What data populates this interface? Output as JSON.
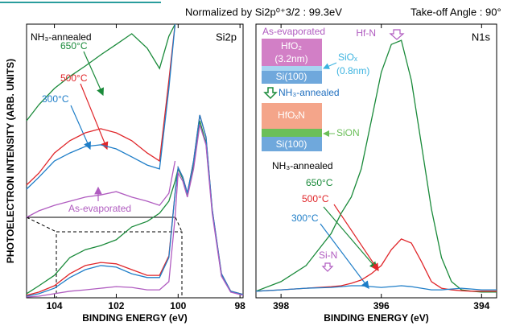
{
  "header": {
    "normalization": "Normalized by Si2p⁰⁺3/2 : 99.3eV",
    "angle": "Take-off Angle : 90°"
  },
  "y_label": "PHOTOELECTRON INTENSITY (ARB. UNITS)",
  "chart_data": [
    {
      "type": "line",
      "title": "Si2p",
      "xlabel": "BINDING ENERGY (eV)",
      "xlim": [
        104.9,
        97.9
      ],
      "xticks": [
        104,
        102,
        100,
        98
      ],
      "ylim": [
        0,
        100
      ],
      "x": [
        104.9,
        104.5,
        104,
        103.5,
        103,
        102.5,
        102,
        101.5,
        101,
        100.6,
        100.3,
        100.1,
        100,
        99.85,
        99.7,
        99.5,
        99.3,
        99.1,
        98.9,
        98.6,
        98.3,
        97.9
      ],
      "series": [
        {
          "color": "#1a8a3a",
          "values": [
            1.5,
            4.4,
            8.2,
            14.7,
            17.6,
            19.1,
            21.2,
            25.9,
            27.9,
            30.9,
            35.3,
            42.6,
            47.1,
            43.5,
            38.2,
            48.5,
            64.7,
            56.5,
            31.8,
            8.2,
            2.4,
            1.2
          ]
        },
        {
          "color": "#e0262a",
          "values": [
            0.9,
            2.1,
            4.4,
            8.8,
            11.8,
            12.9,
            12.4,
            10.3,
            8.2,
            8.2,
            15.3,
            38.2,
            47.6,
            44.1,
            38.2,
            50,
            66.8,
            58.8,
            32.4,
            8.8,
            2.4,
            1.2
          ]
        },
        {
          "color": "#1f7ec8",
          "values": [
            0.6,
            1.5,
            3.5,
            7.4,
            10.3,
            11.8,
            11.2,
            8.8,
            7.4,
            7.4,
            14.7,
            38.2,
            47.6,
            44.1,
            38.2,
            50,
            66.8,
            58.8,
            32.4,
            8.8,
            2.4,
            1.2
          ]
        },
        {
          "color": "#b05cc0",
          "values": [
            0.3,
            0.6,
            1.5,
            2.4,
            2.9,
            3.5,
            4.1,
            3.8,
            2.9,
            2.9,
            5.9,
            29.4,
            45.6,
            42.6,
            36.8,
            47.1,
            63.2,
            55.9,
            30.9,
            7.9,
            2.1,
            0.9
          ]
        },
        {
          "color": "#1a8a3a",
          "values": [
            64.7,
            70.6,
            76.5,
            80.9,
            84.7,
            88.8,
            92.6,
            96.5,
            91.2,
            83.8,
            95.6,
            100,
            null,
            null,
            null,
            null,
            null,
            null,
            null,
            null,
            null,
            null
          ]
        },
        {
          "color": "#e0262a",
          "values": [
            41.2,
            45.6,
            52.9,
            57.4,
            60.3,
            61.8,
            60.3,
            57.4,
            52.9,
            50,
            79.4,
            100,
            null,
            null,
            null,
            null,
            null,
            null,
            null,
            null,
            null,
            null
          ]
        },
        {
          "color": "#1f7ec8",
          "values": [
            39.7,
            44.1,
            50,
            52.9,
            55.3,
            55.9,
            54.4,
            51.5,
            48.5,
            47.1,
            76.5,
            100,
            null,
            null,
            null,
            null,
            null,
            null,
            null,
            null,
            null,
            null
          ]
        },
        {
          "color": "#b05cc0",
          "values": [
            29.4,
            31.8,
            33.8,
            35.3,
            36.8,
            37.6,
            38.8,
            36.8,
            35.3,
            33.8,
            38.2,
            50,
            null,
            null,
            null,
            null,
            null,
            null,
            null,
            null,
            null,
            null
          ]
        }
      ],
      "annotations": [
        "NH₃-annealed",
        "650°C",
        "500°C",
        "300°C",
        "As-evaporated"
      ]
    },
    {
      "type": "line",
      "title": "N1s",
      "xlabel": "BINDING ENERGY (eV)",
      "xlim": [
        398.5,
        393.7
      ],
      "xticks": [
        398,
        396,
        394
      ],
      "ylim": [
        0,
        100
      ],
      "x": [
        398.5,
        398,
        397.5,
        397,
        396.8,
        396.6,
        396.4,
        396.2,
        396,
        395.8,
        395.6,
        395.4,
        395.2,
        395,
        394.8,
        394.6,
        394.4,
        394.2,
        394,
        393.7
      ],
      "series": [
        {
          "color": "#1a8a3a",
          "values": [
            2.4,
            5.9,
            11.8,
            23.5,
            30.9,
            36.8,
            47.1,
            64.7,
            82.4,
            92.6,
            94.1,
            79.4,
            55.9,
            32.4,
            14.7,
            5.9,
            2.9,
            2.4,
            2.1,
            2.1
          ]
        },
        {
          "color": "#e0262a",
          "values": [
            2.4,
            2.9,
            3.5,
            4.1,
            4.4,
            5.3,
            6.5,
            8.8,
            11.8,
            17.6,
            21.5,
            20,
            13.2,
            5.9,
            3.5,
            2.9,
            2.6,
            2.4,
            2.4,
            2.4
          ]
        },
        {
          "color": "#1f7ec8",
          "values": [
            2.4,
            2.9,
            3.5,
            3.8,
            4.1,
            4.4,
            4.4,
            4.1,
            3.8,
            4.1,
            4.4,
            4.1,
            3.5,
            2.9,
            2.9,
            3.2,
            3.5,
            3.2,
            2.9,
            2.9
          ]
        }
      ],
      "annotations": [
        "Hf-N",
        "Si-N",
        "NH₃-annealed",
        "650°C",
        "500°C",
        "300°C"
      ]
    }
  ],
  "schematic": {
    "before": "As-evaporated",
    "hfo2": "HfO₂",
    "hfo2_thickness": "(3.2nm)",
    "siox": "SiOₓ",
    "siox_thickness": "(0.8nm)",
    "si1": "Si(100)",
    "after": "NH₃-annealed",
    "hfoxn": "HfOₓN",
    "sion": "SiON",
    "si2": "Si(100)"
  }
}
